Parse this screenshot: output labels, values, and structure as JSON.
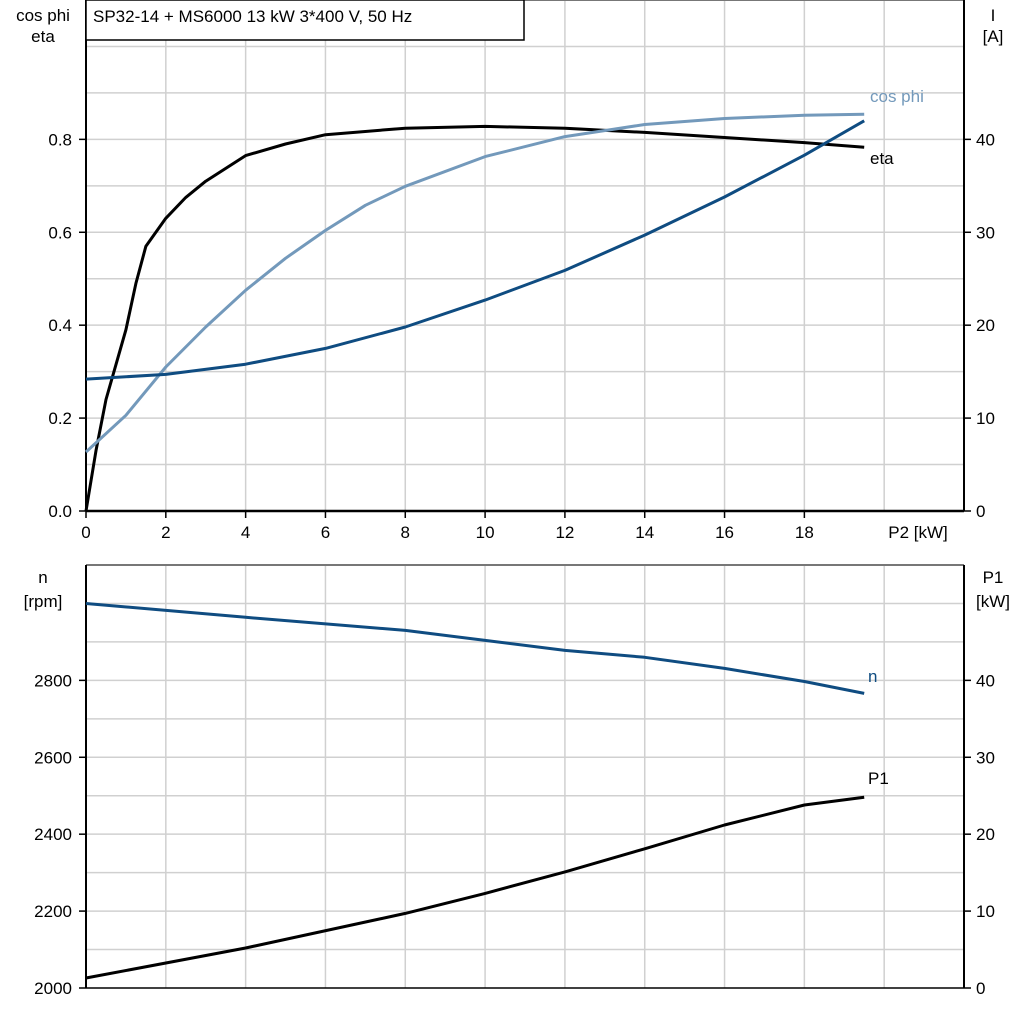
{
  "chart_data": [
    {
      "type": "line",
      "title": "SP32-14 + MS6000   13 kW   3*400 V, 50 Hz",
      "xlabel": "P2 [kW]",
      "ylabel_left": [
        "cos phi",
        "eta"
      ],
      "ylabel_right": [
        "I",
        "[A]"
      ],
      "xlim": [
        0,
        22
      ],
      "ylim_left": [
        0,
        1.1
      ],
      "ylim_right": [
        0,
        55
      ],
      "xticks": [
        0,
        2,
        4,
        6,
        8,
        10,
        12,
        14,
        16,
        18
      ],
      "xtick_labels": [
        "0",
        "2",
        "4",
        "6",
        "8",
        "10",
        "12",
        "14",
        "16",
        "18"
      ],
      "yticks_left": [
        0,
        0.2,
        0.4,
        0.6,
        0.8
      ],
      "ytick_labels_left": [
        "0.0",
        "0.2",
        "0.4",
        "0.6",
        "0.8"
      ],
      "yticks_right": [
        0,
        10,
        20,
        30,
        40
      ],
      "ytick_labels_right": [
        "0",
        "10",
        "20",
        "30",
        "40"
      ],
      "grid": true,
      "series": [
        {
          "name": "eta",
          "axis": "left",
          "color": "#000000",
          "x": [
            0,
            0.25,
            0.5,
            1,
            1.25,
            1.5,
            2,
            2.5,
            3,
            4,
            5,
            6,
            8,
            10,
            12,
            14,
            16,
            18,
            19.5
          ],
          "y": [
            0,
            0.13,
            0.24,
            0.39,
            0.49,
            0.57,
            0.63,
            0.675,
            0.71,
            0.765,
            0.79,
            0.81,
            0.824,
            0.828,
            0.824,
            0.815,
            0.804,
            0.793,
            0.783
          ]
        },
        {
          "name": "cos phi",
          "axis": "left",
          "color": "#7399bb",
          "x": [
            0,
            1,
            2,
            3,
            4,
            5,
            6,
            7,
            8,
            10,
            12,
            14,
            16,
            18,
            19.5
          ],
          "y": [
            0.127,
            0.206,
            0.31,
            0.396,
            0.475,
            0.544,
            0.604,
            0.658,
            0.699,
            0.763,
            0.806,
            0.832,
            0.845,
            0.852,
            0.854
          ]
        },
        {
          "name": "",
          "axis": "right",
          "color": "#0f4c81",
          "x": [
            0,
            2,
            4,
            6,
            8,
            10,
            12,
            14,
            16,
            18,
            19.5
          ],
          "y": [
            14.2,
            14.7,
            15.8,
            17.5,
            19.8,
            22.7,
            25.9,
            29.7,
            33.8,
            38.3,
            42.0
          ]
        }
      ]
    },
    {
      "type": "line",
      "xlim": [
        0,
        22
      ],
      "ylabel_left": [
        "n",
        "[rpm]"
      ],
      "ylabel_right": [
        "P1",
        "[kW]"
      ],
      "ylim_left": [
        2000,
        3100
      ],
      "ylim_right": [
        0,
        55
      ],
      "xticks": [
        0,
        2,
        4,
        6,
        8,
        10,
        12,
        14,
        16,
        18,
        20
      ],
      "yticks_left": [
        2000,
        2200,
        2400,
        2600,
        2800
      ],
      "ytick_labels_left": [
        "2000",
        "2200",
        "2400",
        "2600",
        "2800"
      ],
      "yticks_right": [
        0,
        10,
        20,
        30,
        40
      ],
      "ytick_labels_right": [
        "0",
        "10",
        "20",
        "30",
        "40"
      ],
      "grid": true,
      "series": [
        {
          "name": "n",
          "axis": "left",
          "color": "#0f4c81",
          "x": [
            0,
            4,
            8,
            10,
            12,
            14,
            16,
            18,
            19.5
          ],
          "y": [
            3000,
            2964,
            2930,
            2904,
            2878,
            2860,
            2831,
            2797,
            2766
          ]
        },
        {
          "name": "P1",
          "axis": "right",
          "color": "#000000",
          "x": [
            0,
            4,
            8,
            10,
            12,
            14,
            16,
            18,
            19.5
          ],
          "y": [
            1.3,
            5.2,
            9.7,
            12.3,
            15.1,
            18.1,
            21.2,
            23.8,
            24.8
          ]
        }
      ]
    }
  ]
}
